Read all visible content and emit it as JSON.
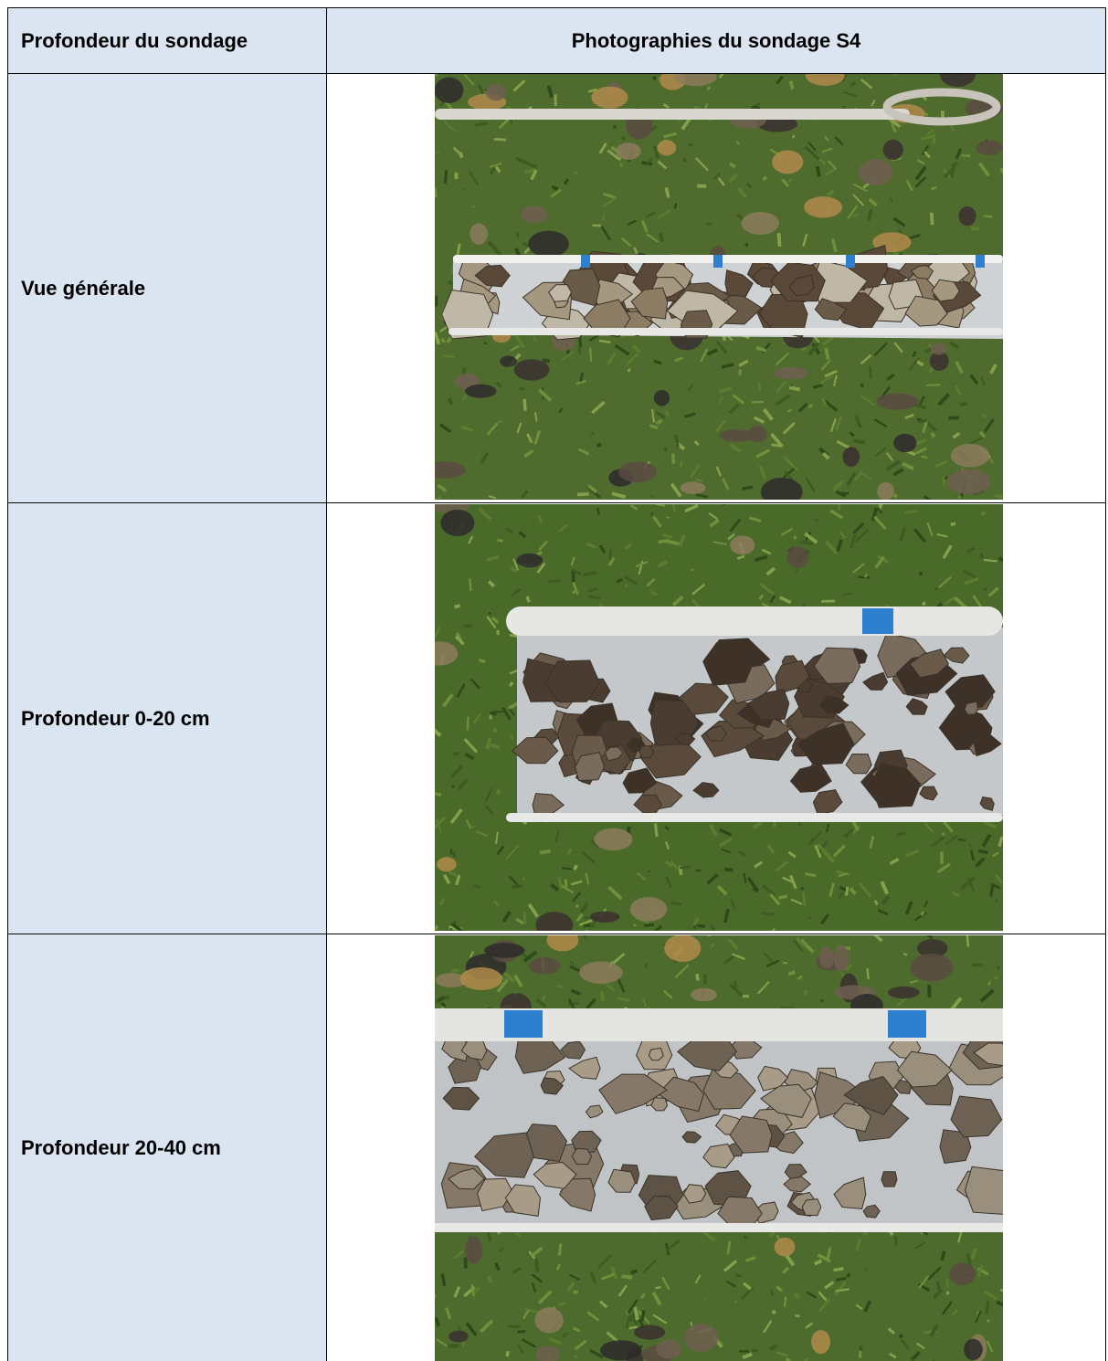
{
  "table": {
    "header": [
      "Profondeur du sondage",
      "Photographies du sondage S4"
    ],
    "rows": [
      [
        "Vue générale"
      ],
      [
        "Profondeur 0-20 cm"
      ],
      [
        "Profondeur 20-40 cm"
      ]
    ]
  }
}
